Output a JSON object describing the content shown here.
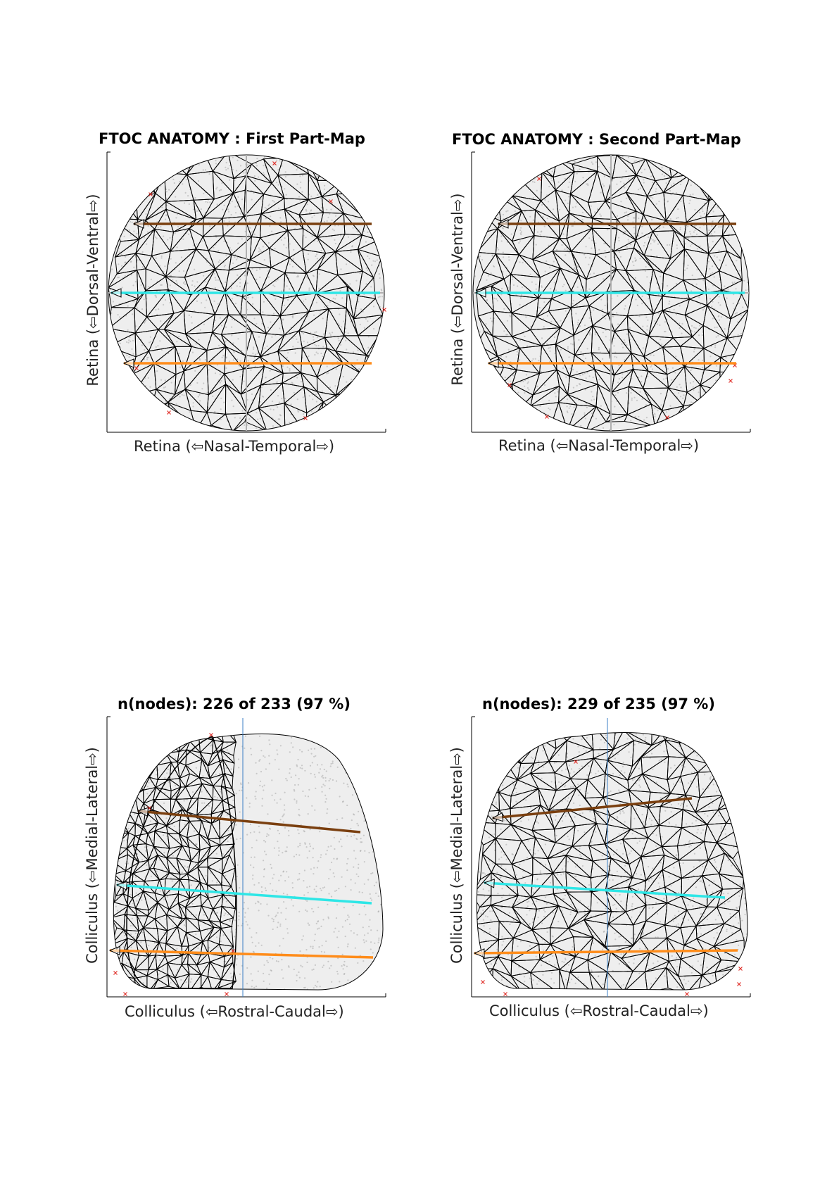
{
  "panels": [
    {
      "id": "retina-first",
      "title": "FTOC ANATOMY : First Part-Map",
      "xlabel": "Retina (⇦Nasal-Temporal⇨)",
      "ylabel": "Retina (⇦Dorsal-Ventral⇨)",
      "shape": "circle",
      "mesh_half": "full",
      "lines": [
        {
          "color": "#7a3f0f"
        },
        {
          "color": "#2ee6e6"
        },
        {
          "color": "#ff8c1a"
        }
      ]
    },
    {
      "id": "retina-second",
      "title": "FTOC ANATOMY : Second Part-Map",
      "xlabel": "Retina (⇦Nasal-Temporal⇨)",
      "ylabel": "Retina (⇦Dorsal-Ventral⇨)",
      "shape": "circle",
      "mesh_half": "full",
      "lines": [
        {
          "color": "#7a3f0f"
        },
        {
          "color": "#2ee6e6"
        },
        {
          "color": "#ff8c1a"
        }
      ]
    },
    {
      "id": "colliculus-first",
      "title": "n(nodes): 226 of 233 (97 %)",
      "xlabel": "Colliculus (⇦Rostral-Caudal⇨)",
      "ylabel": "Colliculus (⇦Medial-Lateral⇨)",
      "shape": "sc",
      "mesh_half": "left",
      "lines": [
        {
          "color": "#7a3f0f"
        },
        {
          "color": "#2ee6e6"
        },
        {
          "color": "#ff8c1a"
        }
      ]
    },
    {
      "id": "colliculus-second",
      "title": "n(nodes): 229 of 235 (97 %)",
      "xlabel": "Colliculus (⇦Rostral-Caudal⇨)",
      "ylabel": "Colliculus (⇦Medial-Lateral⇨)",
      "shape": "sc",
      "mesh_half": "full",
      "lines": [
        {
          "color": "#7a3f0f"
        },
        {
          "color": "#2ee6e6"
        },
        {
          "color": "#ff8c1a"
        }
      ]
    }
  ],
  "colors": {
    "mesh": "#000000",
    "dots": "#9a9a9a",
    "markers": "#e0302a",
    "divider_retina": "#b0b0b0",
    "divider_colliculus": "#3b7fc4"
  }
}
